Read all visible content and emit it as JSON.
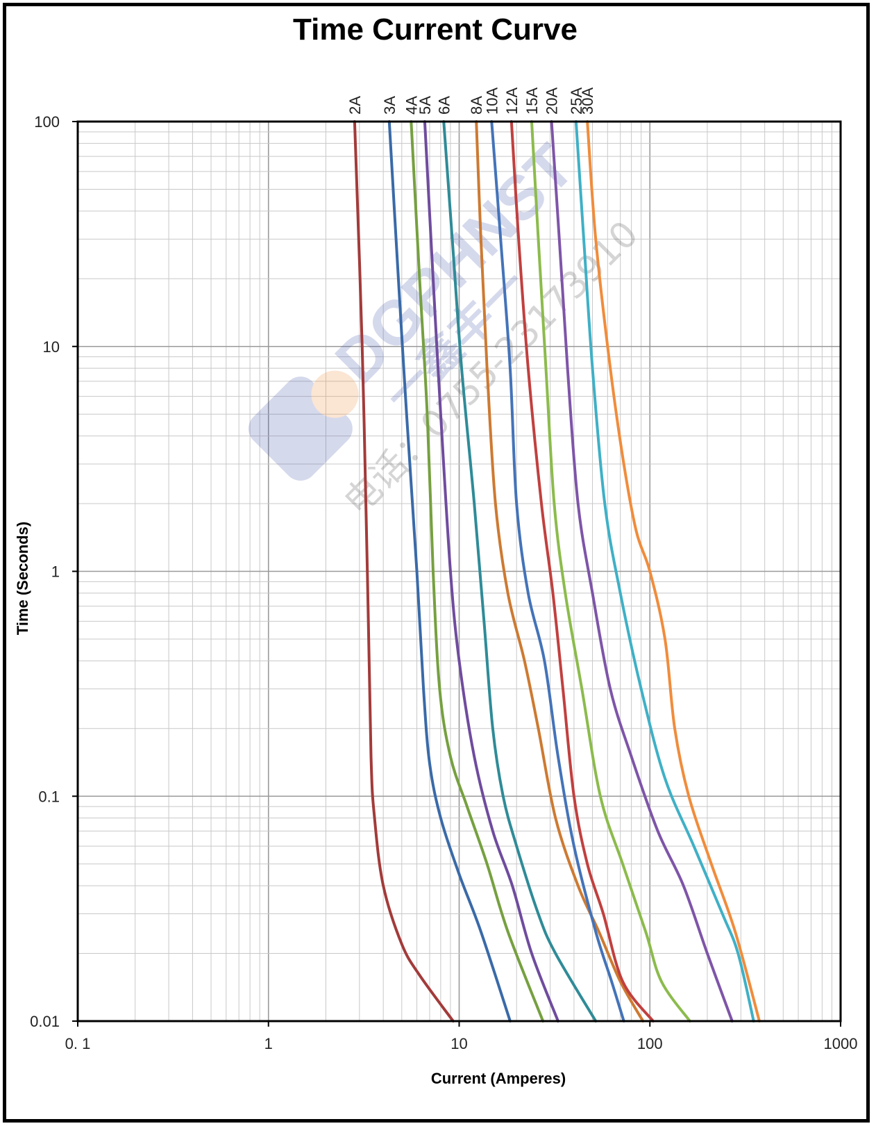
{
  "chart_data": {
    "type": "line",
    "title": "Time Current Curve",
    "xlabel": "Current  (Amperes)",
    "ylabel": "Time (Seconds)",
    "xscale": "log",
    "yscale": "log",
    "xlim": [
      0.1,
      1000
    ],
    "ylim": [
      0.01,
      100
    ],
    "xticks": [
      "0. 1",
      "1",
      "10",
      "100",
      "1000"
    ],
    "yticks": [
      "0.01",
      "0.1",
      "1",
      "10",
      "100"
    ],
    "grid": true,
    "legend": "labels above plot",
    "series": [
      {
        "name": "2A",
        "color": "#a23b3a",
        "points": [
          [
            2.83,
            100
          ],
          [
            3.1,
            10
          ],
          [
            3.3,
            1
          ],
          [
            3.45,
            0.15
          ],
          [
            3.6,
            0.08
          ],
          [
            4.0,
            0.04
          ],
          [
            5.0,
            0.022
          ],
          [
            6.2,
            0.016
          ],
          [
            9.3,
            0.01
          ]
        ]
      },
      {
        "name": "3A",
        "color": "#3a6aa8",
        "points": [
          [
            4.3,
            100
          ],
          [
            4.8,
            20
          ],
          [
            5.3,
            5
          ],
          [
            6.0,
            1
          ],
          [
            6.5,
            0.3
          ],
          [
            7.0,
            0.14
          ],
          [
            8.0,
            0.08
          ],
          [
            10.0,
            0.045
          ],
          [
            13.0,
            0.025
          ],
          [
            18.5,
            0.01
          ]
        ]
      },
      {
        "name": "4A",
        "color": "#76a040",
        "points": [
          [
            5.6,
            100
          ],
          [
            6.2,
            20
          ],
          [
            6.8,
            5
          ],
          [
            7.3,
            1
          ],
          [
            7.9,
            0.3
          ],
          [
            9.0,
            0.15
          ],
          [
            11.0,
            0.09
          ],
          [
            14.0,
            0.05
          ],
          [
            18.0,
            0.025
          ],
          [
            27.5,
            0.01
          ]
        ]
      },
      {
        "name": "5A",
        "color": "#6f4c9e",
        "points": [
          [
            6.6,
            100
          ],
          [
            7.3,
            20
          ],
          [
            8.0,
            5
          ],
          [
            9.0,
            1
          ],
          [
            10.0,
            0.4
          ],
          [
            12.0,
            0.15
          ],
          [
            15.0,
            0.07
          ],
          [
            19.0,
            0.04
          ],
          [
            24.0,
            0.02
          ],
          [
            33.0,
            0.01
          ]
        ]
      },
      {
        "name": "6A",
        "color": "#2f8b97",
        "points": [
          [
            8.3,
            100
          ],
          [
            9.2,
            30
          ],
          [
            10.3,
            8
          ],
          [
            12.0,
            2
          ],
          [
            13.5,
            0.6
          ],
          [
            15.0,
            0.2
          ],
          [
            17.0,
            0.1
          ],
          [
            20.0,
            0.06
          ],
          [
            26.0,
            0.03
          ],
          [
            32.0,
            0.02
          ],
          [
            52.0,
            0.01
          ]
        ]
      },
      {
        "name": "8A",
        "color": "#cd7a32",
        "points": [
          [
            12.3,
            100
          ],
          [
            13.0,
            30
          ],
          [
            14.0,
            8
          ],
          [
            15.5,
            2
          ],
          [
            18.0,
            0.8
          ],
          [
            22.0,
            0.4
          ],
          [
            26.0,
            0.2
          ],
          [
            32.0,
            0.08
          ],
          [
            42.0,
            0.04
          ],
          [
            54.0,
            0.025
          ],
          [
            70.0,
            0.015
          ],
          [
            92.0,
            0.01
          ]
        ]
      },
      {
        "name": "10A",
        "color": "#4473b8",
        "points": [
          [
            14.8,
            100
          ],
          [
            16.5,
            30
          ],
          [
            18.5,
            8
          ],
          [
            20.0,
            2
          ],
          [
            23.0,
            0.8
          ],
          [
            28.0,
            0.4
          ],
          [
            33.0,
            0.15
          ],
          [
            40.0,
            0.06
          ],
          [
            52.0,
            0.025
          ],
          [
            63.0,
            0.015
          ],
          [
            73.0,
            0.01
          ]
        ]
      },
      {
        "name": "12A",
        "color": "#c0403f",
        "points": [
          [
            18.8,
            100
          ],
          [
            20.5,
            30
          ],
          [
            23.0,
            8
          ],
          [
            27.0,
            2
          ],
          [
            31.0,
            0.8
          ],
          [
            35.0,
            0.3
          ],
          [
            40.0,
            0.1
          ],
          [
            47.0,
            0.05
          ],
          [
            57.0,
            0.03
          ],
          [
            72.0,
            0.015
          ],
          [
            104.0,
            0.01
          ]
        ]
      },
      {
        "name": "15A",
        "color": "#8cbb4c",
        "points": [
          [
            24.0,
            100
          ],
          [
            26.0,
            30
          ],
          [
            28.5,
            8
          ],
          [
            31.5,
            2
          ],
          [
            36.0,
            0.8
          ],
          [
            44.0,
            0.3
          ],
          [
            55.0,
            0.1
          ],
          [
            72.0,
            0.05
          ],
          [
            95.0,
            0.025
          ],
          [
            115.0,
            0.015
          ],
          [
            162.0,
            0.01
          ]
        ]
      },
      {
        "name": "20A",
        "color": "#7e55a8",
        "points": [
          [
            30.5,
            100
          ],
          [
            33.5,
            30
          ],
          [
            37.0,
            8
          ],
          [
            42.0,
            2
          ],
          [
            50.0,
            0.8
          ],
          [
            62.0,
            0.3
          ],
          [
            80.0,
            0.15
          ],
          [
            110.0,
            0.07
          ],
          [
            150.0,
            0.04
          ],
          [
            200.0,
            0.02
          ],
          [
            270.0,
            0.01
          ]
        ]
      },
      {
        "name": "25A",
        "color": "#3fb0c6",
        "points": [
          [
            41.0,
            100
          ],
          [
            45.0,
            30
          ],
          [
            50.0,
            8
          ],
          [
            58.0,
            2
          ],
          [
            70.0,
            0.8
          ],
          [
            90.0,
            0.3
          ],
          [
            120.0,
            0.12
          ],
          [
            170.0,
            0.06
          ],
          [
            240.0,
            0.03
          ],
          [
            290.0,
            0.02
          ],
          [
            350.0,
            0.01
          ]
        ]
      },
      {
        "name": "30A",
        "color": "#f08c3c",
        "points": [
          [
            47.0,
            100
          ],
          [
            52.0,
            30
          ],
          [
            62.0,
            8
          ],
          [
            73.0,
            3
          ],
          [
            85.0,
            1.5
          ],
          [
            100.0,
            1
          ],
          [
            120.0,
            0.5
          ],
          [
            135.0,
            0.2
          ],
          [
            160.0,
            0.1
          ],
          [
            210.0,
            0.05
          ],
          [
            280.0,
            0.025
          ],
          [
            375.0,
            0.01
          ]
        ]
      }
    ]
  },
  "watermark": {
    "brand": "DGPHNST",
    "chinese": "一鑫丰一",
    "phone": "电话：0755-23173910"
  }
}
